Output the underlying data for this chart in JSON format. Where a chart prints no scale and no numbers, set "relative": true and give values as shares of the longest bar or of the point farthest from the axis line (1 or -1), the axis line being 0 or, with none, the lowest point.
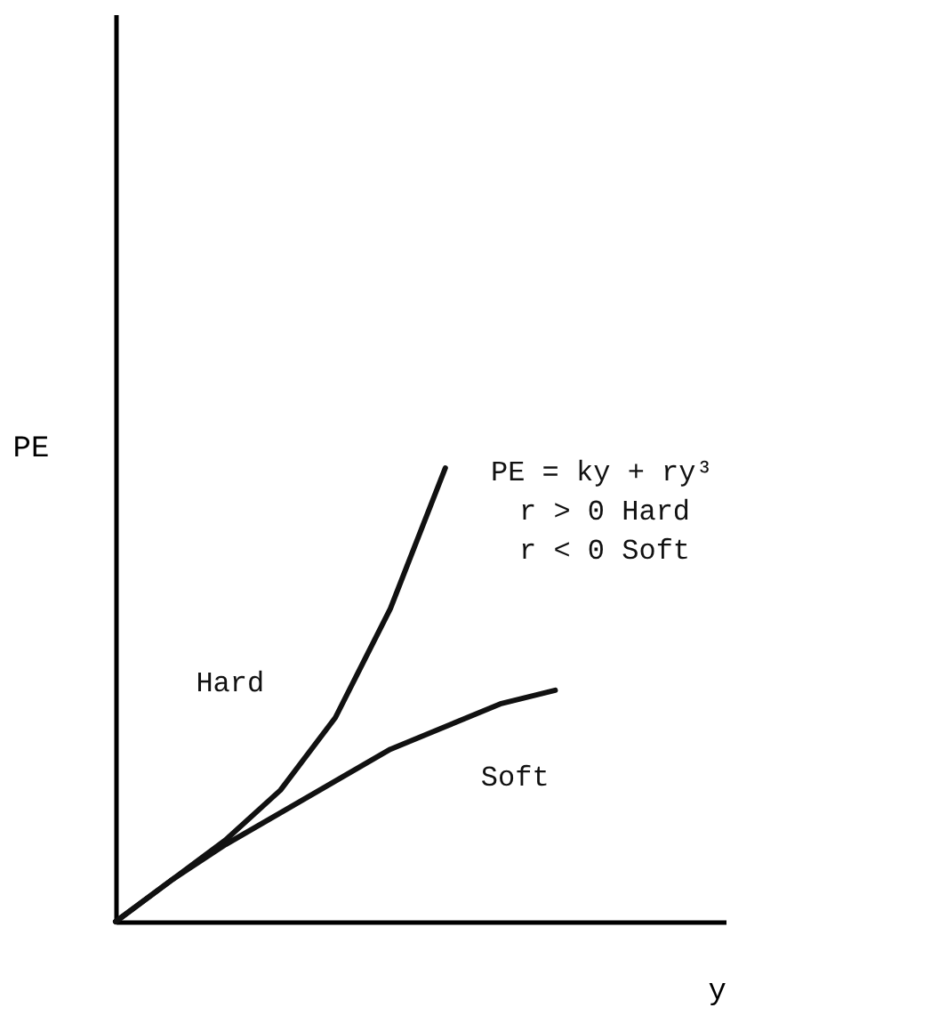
{
  "chart_data": {
    "type": "line",
    "relative": true,
    "xlabel": "y",
    "ylabel": "PE",
    "categories": [
      null,
      null,
      null,
      null,
      null,
      null,
      null,
      null,
      null
    ],
    "series": [
      {
        "name": "Hard",
        "color": "#111111",
        "values": [
          0,
          0.09,
          0.18,
          0.29,
          0.45,
          0.69,
          1,
          null,
          null
        ]
      },
      {
        "name": "Soft",
        "color": "#111111",
        "values": [
          0,
          0.09,
          0.17,
          0.24,
          0.31,
          0.38,
          0.43,
          0.48,
          0.51
        ]
      }
    ],
    "annotations": [
      "PE = ky + ry³",
      "r > 0 Hard",
      "r < 0 Soft"
    ],
    "marker": "none",
    "line_style": "solid"
  }
}
